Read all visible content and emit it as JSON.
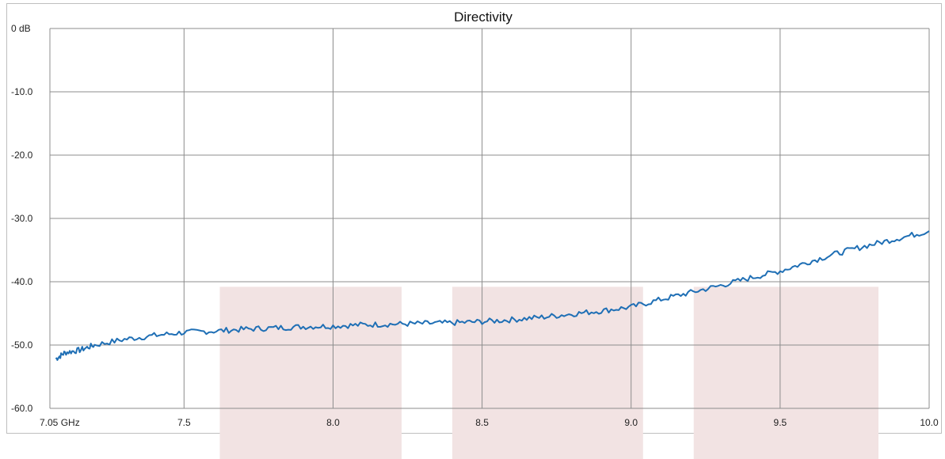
{
  "chart_data": {
    "type": "line",
    "title": "Directivity",
    "xlabel": "",
    "ylabel": "",
    "x_tick_labels": [
      "7.05 GHz",
      "7.5",
      "8.0",
      "8.5",
      "9.0",
      "9.5",
      "10.0"
    ],
    "x_ticks": [
      7.05,
      7.5,
      8.0,
      8.5,
      9.0,
      9.5,
      10.0
    ],
    "y_tick_labels": [
      "0 dB",
      "-10.0",
      "-20.0",
      "-30.0",
      "-40.0",
      "-50.0",
      "-60.0"
    ],
    "y_ticks": [
      0,
      -10,
      -20,
      -30,
      -40,
      -50,
      -60
    ],
    "xlim": [
      7.05,
      10.0
    ],
    "ylim": [
      -60,
      0
    ],
    "grid": true,
    "legend": "none",
    "shaded_bands": [
      {
        "x_start": 7.62,
        "x_end": 8.23,
        "y_top": -40.8
      },
      {
        "x_start": 8.4,
        "x_end": 9.04,
        "y_top": -40.8
      },
      {
        "x_start": 9.21,
        "x_end": 9.83,
        "y_top": -40.8
      }
    ],
    "series": [
      {
        "color": "#1f6fb5",
        "x": [
          7.07,
          7.1,
          7.15,
          7.2,
          7.3,
          7.4,
          7.5,
          7.6,
          7.7,
          7.8,
          7.9,
          8.0,
          8.1,
          8.2,
          8.3,
          8.4,
          8.5,
          8.6,
          8.7,
          8.8,
          8.9,
          9.0,
          9.1,
          9.2,
          9.3,
          9.4,
          9.5,
          9.6,
          9.7,
          9.8,
          9.9,
          10.0
        ],
        "y": [
          -52.2,
          -51.2,
          -50.8,
          -50.0,
          -49.1,
          -48.5,
          -48.0,
          -47.8,
          -47.5,
          -47.3,
          -47.1,
          -47.0,
          -46.8,
          -46.7,
          -46.6,
          -46.5,
          -46.3,
          -46.0,
          -45.6,
          -45.1,
          -44.6,
          -44.0,
          -42.8,
          -41.7,
          -40.6,
          -39.4,
          -38.3,
          -36.8,
          -35.4,
          -34.2,
          -33.1,
          -32.0
        ]
      }
    ]
  },
  "colors": {
    "line": "#1f6fb5",
    "band": "#f2e3e3",
    "grid": "#8c8c8c",
    "frame": "#bfbfbf"
  }
}
